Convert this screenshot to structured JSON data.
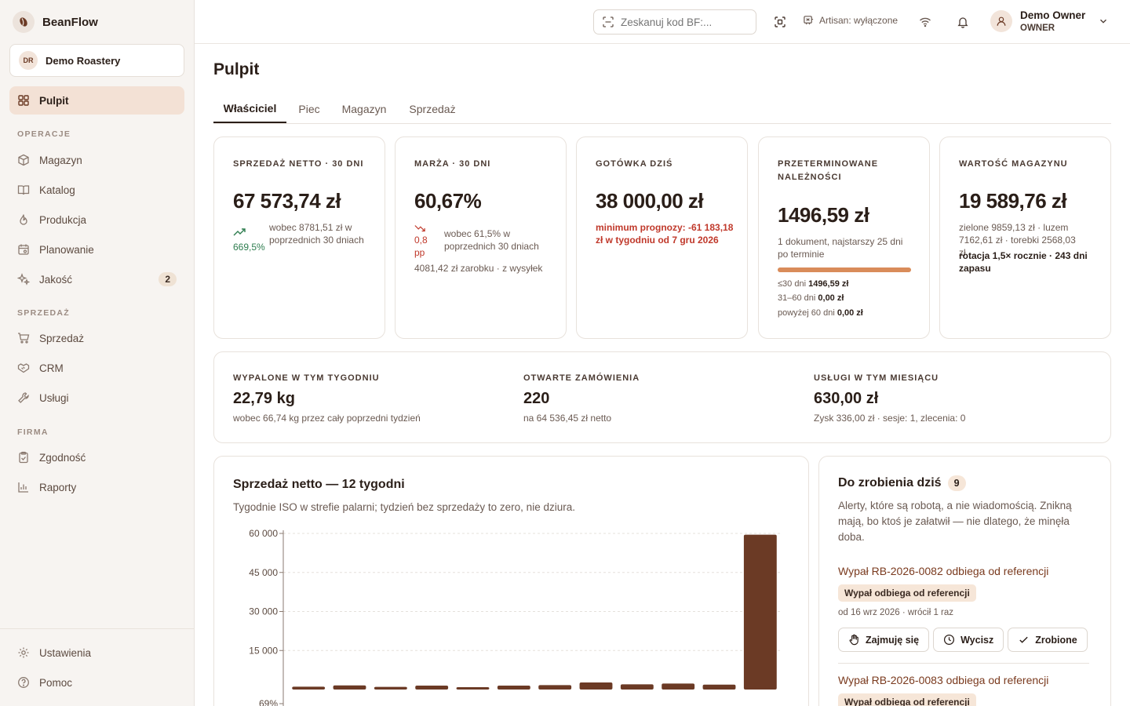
{
  "app": {
    "name": "BeanFlow"
  },
  "org": {
    "initials": "DR",
    "name": "Demo Roastery"
  },
  "sidebar": {
    "active": {
      "label": "Pulpit",
      "icon": "dashboard-icon"
    },
    "sections": [
      {
        "title": "OPERACJE",
        "items": [
          {
            "label": "Magazyn",
            "icon": "box-icon"
          },
          {
            "label": "Katalog",
            "icon": "book-icon"
          },
          {
            "label": "Produkcja",
            "icon": "flame-icon"
          },
          {
            "label": "Planowanie",
            "icon": "calendar-icon"
          },
          {
            "label": "Jakość",
            "icon": "sparkles-icon",
            "badge": "2"
          }
        ]
      },
      {
        "title": "SPRZEDAŻ",
        "items": [
          {
            "label": "Sprzedaż",
            "icon": "cart-icon"
          },
          {
            "label": "CRM",
            "icon": "handshake-icon"
          },
          {
            "label": "Usługi",
            "icon": "wrench-icon"
          }
        ]
      },
      {
        "title": "FIRMA",
        "items": [
          {
            "label": "Zgodność",
            "icon": "clipboard-check-icon"
          },
          {
            "label": "Raporty",
            "icon": "bar-chart-icon"
          }
        ]
      }
    ],
    "footer": [
      {
        "label": "Ustawienia",
        "icon": "gear-icon"
      },
      {
        "label": "Pomoc",
        "icon": "help-icon"
      }
    ]
  },
  "topbar": {
    "scan_placeholder": "Zeskanuj kod BF:...",
    "artisan_label": "Artisan: wyłączone",
    "user_name": "Demo Owner",
    "user_role": "OWNER"
  },
  "page": {
    "title": "Pulpit"
  },
  "tabs": [
    "Właściciel",
    "Piec",
    "Magazyn",
    "Sprzedaż"
  ],
  "active_tab": "Właściciel",
  "kpis": {
    "sales": {
      "label": "SPRZEDAŻ NETTO · 30 DNI",
      "value": "67 573,74 zł",
      "change": "669,5%",
      "compare": "wobec 8781,51 zł w poprzednich 30 dniach"
    },
    "margin": {
      "label": "MARŻA · 30 DNI",
      "value": "60,67%",
      "change": "0,8 pp",
      "compare": "wobec 61,5% w poprzednich 30 dniach",
      "detail": "4081,42 zł zarobku · z wysyłek"
    },
    "cash": {
      "label": "GOTÓWKA DZIŚ",
      "value": "38 000,00 zł",
      "warning": "minimum prognozy: -61 183,18 zł w tygodniu od 7 gru 2026"
    },
    "overdue": {
      "label": "PRZETERMINOWANE NALEŻNOŚCI",
      "value": "1496,59 zł",
      "detail": "1 dokument, najstarszy 25 dni po terminie",
      "fill_fraction": 1.0,
      "aging": [
        {
          "range": "≤30 dni",
          "amount": "1496,59 zł"
        },
        {
          "range": "31–60 dni",
          "amount": "0,00 zł"
        },
        {
          "range": "powyżej 60 dni",
          "amount": "0,00 zł"
        }
      ]
    },
    "inventory": {
      "label": "WARTOŚĆ MAGAZYNU",
      "value": "19 589,76 zł",
      "detail": "zielone 9859,13 zł · luzem 7162,61 zł · torebki 2568,03 zł",
      "rotation": "rotacja 1,5× rocznie · 243 dni zapasu"
    }
  },
  "stats": [
    {
      "label": "WYPALONE W TYM TYGODNIU",
      "value": "22,79 kg",
      "sub": "wobec 66,74 kg przez cały poprzedni tydzień"
    },
    {
      "label": "OTWARTE ZAMÓWIENIA",
      "value": "220",
      "sub": "na 64 536,45 zł netto"
    },
    {
      "label": "USŁUGI W TYM MIESIĄCU",
      "value": "630,00 zł",
      "sub": "Zysk 336,00 zł · sesje: 1, zlecenia: 0"
    }
  ],
  "chart_data": {
    "type": "bar",
    "title": "Sprzedaż netto — 12 tygodni",
    "subtitle": "Tygodnie ISO w strefie palarni; tydzień bez sprzedaży to zero, nie dziura.",
    "y_ticks": [
      "60 000",
      "45 000",
      "30 000",
      "15 000"
    ],
    "y_bottom_label": "69%",
    "ylim": [
      0,
      60000
    ],
    "values": [
      1100,
      1600,
      1000,
      1500,
      900,
      1500,
      1700,
      2700,
      2000,
      2300,
      1900,
      59500
    ],
    "color": "#6b3a25",
    "grid": true
  },
  "todo": {
    "title": "Do zrobienia dziś",
    "count": "9",
    "subtitle": "Alerty, które są robotą, a nie wiadomością. Znikną mają, bo ktoś je załatwił — nie dlatego, że minęła doba.",
    "alerts": [
      {
        "title": "Wypał RB-2026-0082 odbiega od referencji",
        "tag": "Wypał odbiega od referencji",
        "meta": "od 16 wrz 2026 · wrócił 1 raz"
      },
      {
        "title": "Wypał RB-2026-0083 odbiega od referencji",
        "tag": "Wypał odbiega od referencji"
      }
    ],
    "actions": {
      "take": "Zajmuję się",
      "snooze": "Wycisz",
      "done": "Zrobione"
    }
  }
}
